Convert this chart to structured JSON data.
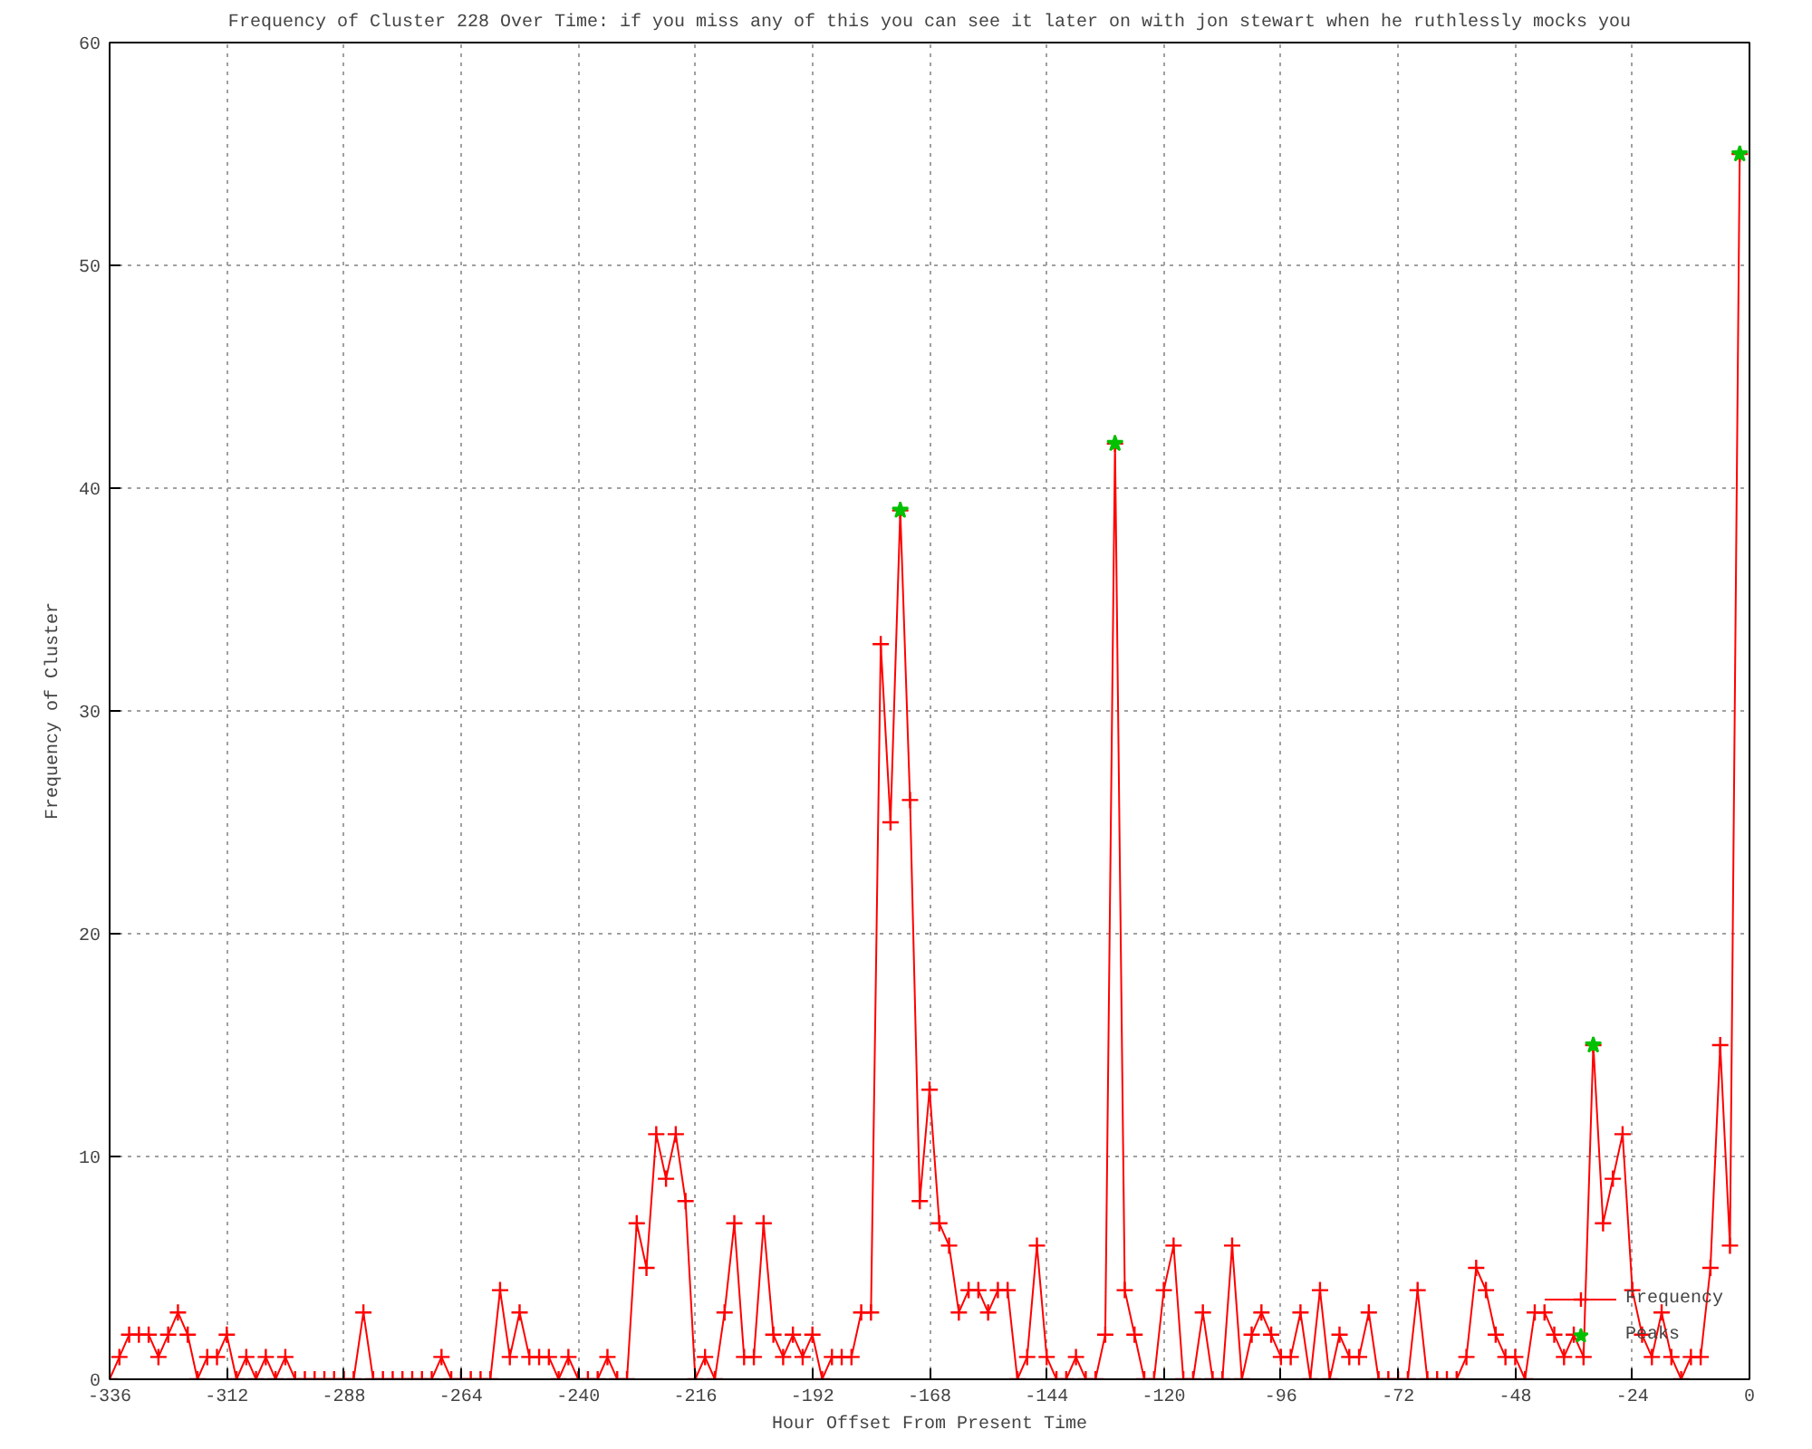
{
  "chart_data": {
    "type": "line",
    "title": "Frequency of Cluster 228 Over Time: if you miss any of this you can see it later on with jon stewart when he ruthlessly mocks you",
    "xlabel": "Hour Offset From Present Time",
    "ylabel": "Frequency of Cluster",
    "x": [
      -336,
      -334,
      -332,
      -330,
      -328,
      -326,
      -324,
      -322,
      -320,
      -318,
      -316,
      -314,
      -312,
      -310,
      -308,
      -306,
      -304,
      -302,
      -300,
      -298,
      -296,
      -294,
      -292,
      -290,
      -288,
      -286,
      -284,
      -282,
      -280,
      -278,
      -276,
      -274,
      -272,
      -270,
      -268,
      -266,
      -264,
      -262,
      -260,
      -258,
      -256,
      -254,
      -252,
      -250,
      -248,
      -246,
      -244,
      -242,
      -240,
      -238,
      -236,
      -234,
      -232,
      -230,
      -228,
      -226,
      -224,
      -222,
      -220,
      -218,
      -216,
      -214,
      -212,
      -210,
      -208,
      -206,
      -204,
      -202,
      -200,
      -198,
      -196,
      -194,
      -192,
      -190,
      -188,
      -186,
      -184,
      -182,
      -180,
      -178,
      -176,
      -174,
      -172,
      -170,
      -168,
      -166,
      -164,
      -162,
      -160,
      -158,
      -156,
      -154,
      -152,
      -150,
      -148,
      -146,
      -144,
      -142,
      -140,
      -138,
      -136,
      -134,
      -132,
      -130,
      -128,
      -126,
      -124,
      -122,
      -120,
      -118,
      -116,
      -114,
      -112,
      -110,
      -108,
      -106,
      -104,
      -102,
      -100,
      -98,
      -96,
      -94,
      -92,
      -90,
      -88,
      -86,
      -84,
      -82,
      -80,
      -78,
      -76,
      -74,
      -72,
      -70,
      -68,
      -66,
      -64,
      -62,
      -60,
      -58,
      -56,
      -54,
      -52,
      -50,
      -48,
      -46,
      -44,
      -42,
      -40,
      -38,
      -36,
      -34,
      -32,
      -30,
      -28,
      -26,
      -24,
      -22,
      -20,
      -18,
      -16,
      -14,
      -12,
      -10,
      -8,
      -6,
      -4,
      -2
    ],
    "series": [
      {
        "name": "Frequency",
        "color": "#ff0000",
        "marker": "cross",
        "line_style": "solid",
        "values": [
          0,
          1,
          2,
          2,
          2,
          1,
          2,
          3,
          2,
          0,
          1,
          1,
          2,
          0,
          1,
          0,
          1,
          0,
          1,
          0,
          0,
          0,
          0,
          0,
          0,
          0,
          3,
          0,
          0,
          0,
          0,
          0,
          0,
          0,
          1,
          0,
          0,
          0,
          0,
          0,
          4,
          1,
          3,
          1,
          1,
          1,
          0,
          1,
          0,
          0,
          0,
          1,
          0,
          0,
          7,
          5,
          11,
          9,
          11,
          8,
          0,
          1,
          0,
          3,
          7,
          1,
          1,
          7,
          2,
          1,
          2,
          1,
          2,
          0,
          1,
          1,
          1,
          3,
          3,
          33,
          25,
          39,
          26,
          8,
          13,
          7,
          6,
          3,
          4,
          4,
          3,
          4,
          4,
          0,
          1,
          6,
          1,
          0,
          0,
          1,
          0,
          0,
          2,
          42,
          4,
          2,
          0,
          0,
          4,
          6,
          0,
          0,
          3,
          0,
          0,
          6,
          0,
          2,
          3,
          2,
          1,
          1,
          3,
          0,
          4,
          0,
          2,
          1,
          1,
          3,
          0,
          0,
          0,
          0,
          4,
          0,
          0,
          0,
          0,
          1,
          5,
          4,
          2,
          1,
          1,
          0,
          3,
          3,
          2,
          1,
          2,
          1,
          15,
          7,
          9,
          11,
          4,
          2,
          1,
          3,
          1,
          0,
          1,
          1,
          5,
          15,
          6,
          55
        ]
      },
      {
        "name": "Peaks",
        "type": "scatter",
        "color": "#00c000",
        "marker": "star",
        "x": [
          -174,
          -130,
          -32,
          -2
        ],
        "values": [
          39,
          42,
          15,
          55
        ]
      }
    ],
    "xlim": [
      -336,
      0
    ],
    "xticks": [
      -336,
      -312,
      -288,
      -264,
      -240,
      -216,
      -192,
      -168,
      -144,
      -120,
      -96,
      -72,
      -48,
      -24,
      0
    ],
    "ylim": [
      0,
      60
    ],
    "yticks": [
      0,
      10,
      20,
      30,
      40,
      50,
      60
    ],
    "grid": true,
    "legend": "bottom right"
  }
}
